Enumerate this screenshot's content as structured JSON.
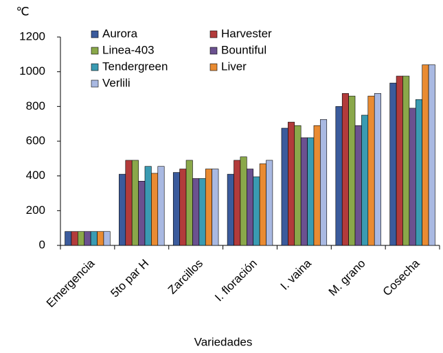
{
  "chart_data": {
    "type": "bar",
    "unit": "℃",
    "x_label": "Variedades",
    "categories": [
      "Emergencia",
      "5to par  H",
      "Zarcillos",
      "I. floración",
      "I. vaina",
      "M. grano",
      "Cosecha"
    ],
    "series": [
      {
        "name": "Aurora",
        "color": "#3b5b9c",
        "values": [
          80,
          410,
          420,
          410,
          675,
          800,
          935
        ]
      },
      {
        "name": "Harvester",
        "color": "#b23b3b",
        "values": [
          80,
          490,
          440,
          490,
          710,
          875,
          975
        ]
      },
      {
        "name": "Linea-403",
        "color": "#8aa84a",
        "values": [
          80,
          490,
          490,
          510,
          690,
          860,
          975
        ]
      },
      {
        "name": "Bountiful",
        "color": "#6b5190",
        "values": [
          80,
          370,
          385,
          440,
          620,
          690,
          790
        ]
      },
      {
        "name": "Tendergreen",
        "color": "#3a9bb2",
        "values": [
          80,
          455,
          385,
          395,
          620,
          750,
          840
        ]
      },
      {
        "name": "Liver",
        "color": "#e98b32",
        "values": [
          80,
          415,
          440,
          470,
          690,
          860,
          1040
        ]
      },
      {
        "name": "Verlili",
        "color": "#a9b9e2",
        "values": [
          80,
          455,
          440,
          490,
          725,
          875,
          1040
        ]
      }
    ],
    "ylim": [
      0,
      1200
    ],
    "yticks": [
      0,
      200,
      400,
      600,
      800,
      1000,
      1200
    ]
  }
}
